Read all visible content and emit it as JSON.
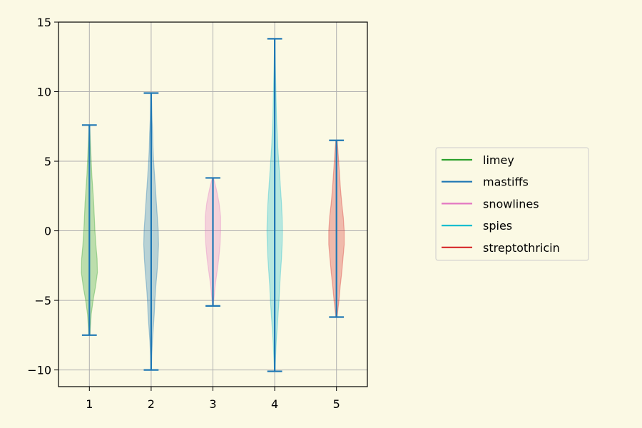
{
  "chart_data": {
    "type": "violin",
    "title": "",
    "xlabel": "",
    "ylabel": "",
    "categories": [
      "1",
      "2",
      "3",
      "4",
      "5"
    ],
    "ylim": [
      -11.2,
      15
    ],
    "xlim": [
      0.5,
      5.5
    ],
    "yticks": [
      -10,
      -5,
      0,
      5,
      10,
      15
    ],
    "y_tick_labels": [
      "−10",
      "−5",
      "0",
      "5",
      "10",
      "15"
    ],
    "grid": true,
    "legend_placement": "center-right, outside plot",
    "extrema_color": "#1f77b4",
    "series": [
      {
        "name": "limey",
        "color": "#2ca02c",
        "position": 1,
        "min": -7.5,
        "max": 7.6,
        "profile": [
          [
            -7.5,
            0.02
          ],
          [
            -7.0,
            0.03
          ],
          [
            -6.0,
            0.06
          ],
          [
            -5.0,
            0.12
          ],
          [
            -4.0,
            0.2
          ],
          [
            -3.0,
            0.26
          ],
          [
            -2.0,
            0.25
          ],
          [
            -1.0,
            0.21
          ],
          [
            0.0,
            0.18
          ],
          [
            1.0,
            0.16
          ],
          [
            2.0,
            0.14
          ],
          [
            3.0,
            0.11
          ],
          [
            4.0,
            0.08
          ],
          [
            5.0,
            0.06
          ],
          [
            6.0,
            0.04
          ],
          [
            7.0,
            0.02
          ],
          [
            7.6,
            0.01
          ]
        ]
      },
      {
        "name": "mastiffs",
        "color": "#1f77b4",
        "position": 2,
        "min": -10.0,
        "max": 9.9,
        "profile": [
          [
            -10.0,
            0.01
          ],
          [
            -9.0,
            0.02
          ],
          [
            -8.0,
            0.04
          ],
          [
            -7.0,
            0.07
          ],
          [
            -6.0,
            0.1
          ],
          [
            -5.0,
            0.12
          ],
          [
            -4.0,
            0.15
          ],
          [
            -3.0,
            0.19
          ],
          [
            -2.0,
            0.22
          ],
          [
            -1.0,
            0.24
          ],
          [
            0.0,
            0.23
          ],
          [
            1.0,
            0.2
          ],
          [
            2.0,
            0.17
          ],
          [
            3.0,
            0.14
          ],
          [
            4.0,
            0.11
          ],
          [
            5.0,
            0.08
          ],
          [
            6.0,
            0.06
          ],
          [
            7.0,
            0.05
          ],
          [
            8.0,
            0.03
          ],
          [
            9.0,
            0.02
          ],
          [
            9.9,
            0.01
          ]
        ]
      },
      {
        "name": "snowlines",
        "color": "#e377c2",
        "position": 3,
        "min": -5.4,
        "max": 3.8,
        "profile": [
          [
            -5.4,
            0.01
          ],
          [
            -5.0,
            0.03
          ],
          [
            -4.0,
            0.07
          ],
          [
            -3.0,
            0.13
          ],
          [
            -2.0,
            0.19
          ],
          [
            -1.0,
            0.23
          ],
          [
            0.0,
            0.25
          ],
          [
            1.0,
            0.25
          ],
          [
            2.0,
            0.2
          ],
          [
            3.0,
            0.11
          ],
          [
            3.8,
            0.02
          ]
        ]
      },
      {
        "name": "spies",
        "color": "#17becf",
        "position": 4,
        "min": -10.1,
        "max": 13.8,
        "profile": [
          [
            -10.1,
            0.01
          ],
          [
            -9.0,
            0.03
          ],
          [
            -8.0,
            0.05
          ],
          [
            -7.0,
            0.08
          ],
          [
            -6.0,
            0.11
          ],
          [
            -5.0,
            0.14
          ],
          [
            -4.0,
            0.16
          ],
          [
            -3.0,
            0.19
          ],
          [
            -2.0,
            0.22
          ],
          [
            -1.0,
            0.24
          ],
          [
            0.0,
            0.25
          ],
          [
            1.0,
            0.24
          ],
          [
            2.0,
            0.22
          ],
          [
            3.0,
            0.19
          ],
          [
            4.0,
            0.16
          ],
          [
            5.0,
            0.13
          ],
          [
            6.0,
            0.1
          ],
          [
            7.0,
            0.08
          ],
          [
            8.0,
            0.06
          ],
          [
            9.0,
            0.05
          ],
          [
            10.0,
            0.04
          ],
          [
            11.0,
            0.03
          ],
          [
            12.0,
            0.02
          ],
          [
            13.0,
            0.01
          ],
          [
            13.8,
            0.0
          ]
        ]
      },
      {
        "name": "streptothricin",
        "color": "#d62728",
        "position": 5,
        "min": -6.2,
        "max": 6.5,
        "profile": [
          [
            -6.2,
            0.02
          ],
          [
            -6.0,
            0.03
          ],
          [
            -5.0,
            0.08
          ],
          [
            -4.0,
            0.12
          ],
          [
            -3.0,
            0.17
          ],
          [
            -2.0,
            0.21
          ],
          [
            -1.0,
            0.25
          ],
          [
            0.0,
            0.25
          ],
          [
            1.0,
            0.22
          ],
          [
            2.0,
            0.17
          ],
          [
            3.0,
            0.13
          ],
          [
            4.0,
            0.1
          ],
          [
            5.0,
            0.07
          ],
          [
            6.0,
            0.04
          ],
          [
            6.5,
            0.02
          ]
        ]
      }
    ]
  }
}
